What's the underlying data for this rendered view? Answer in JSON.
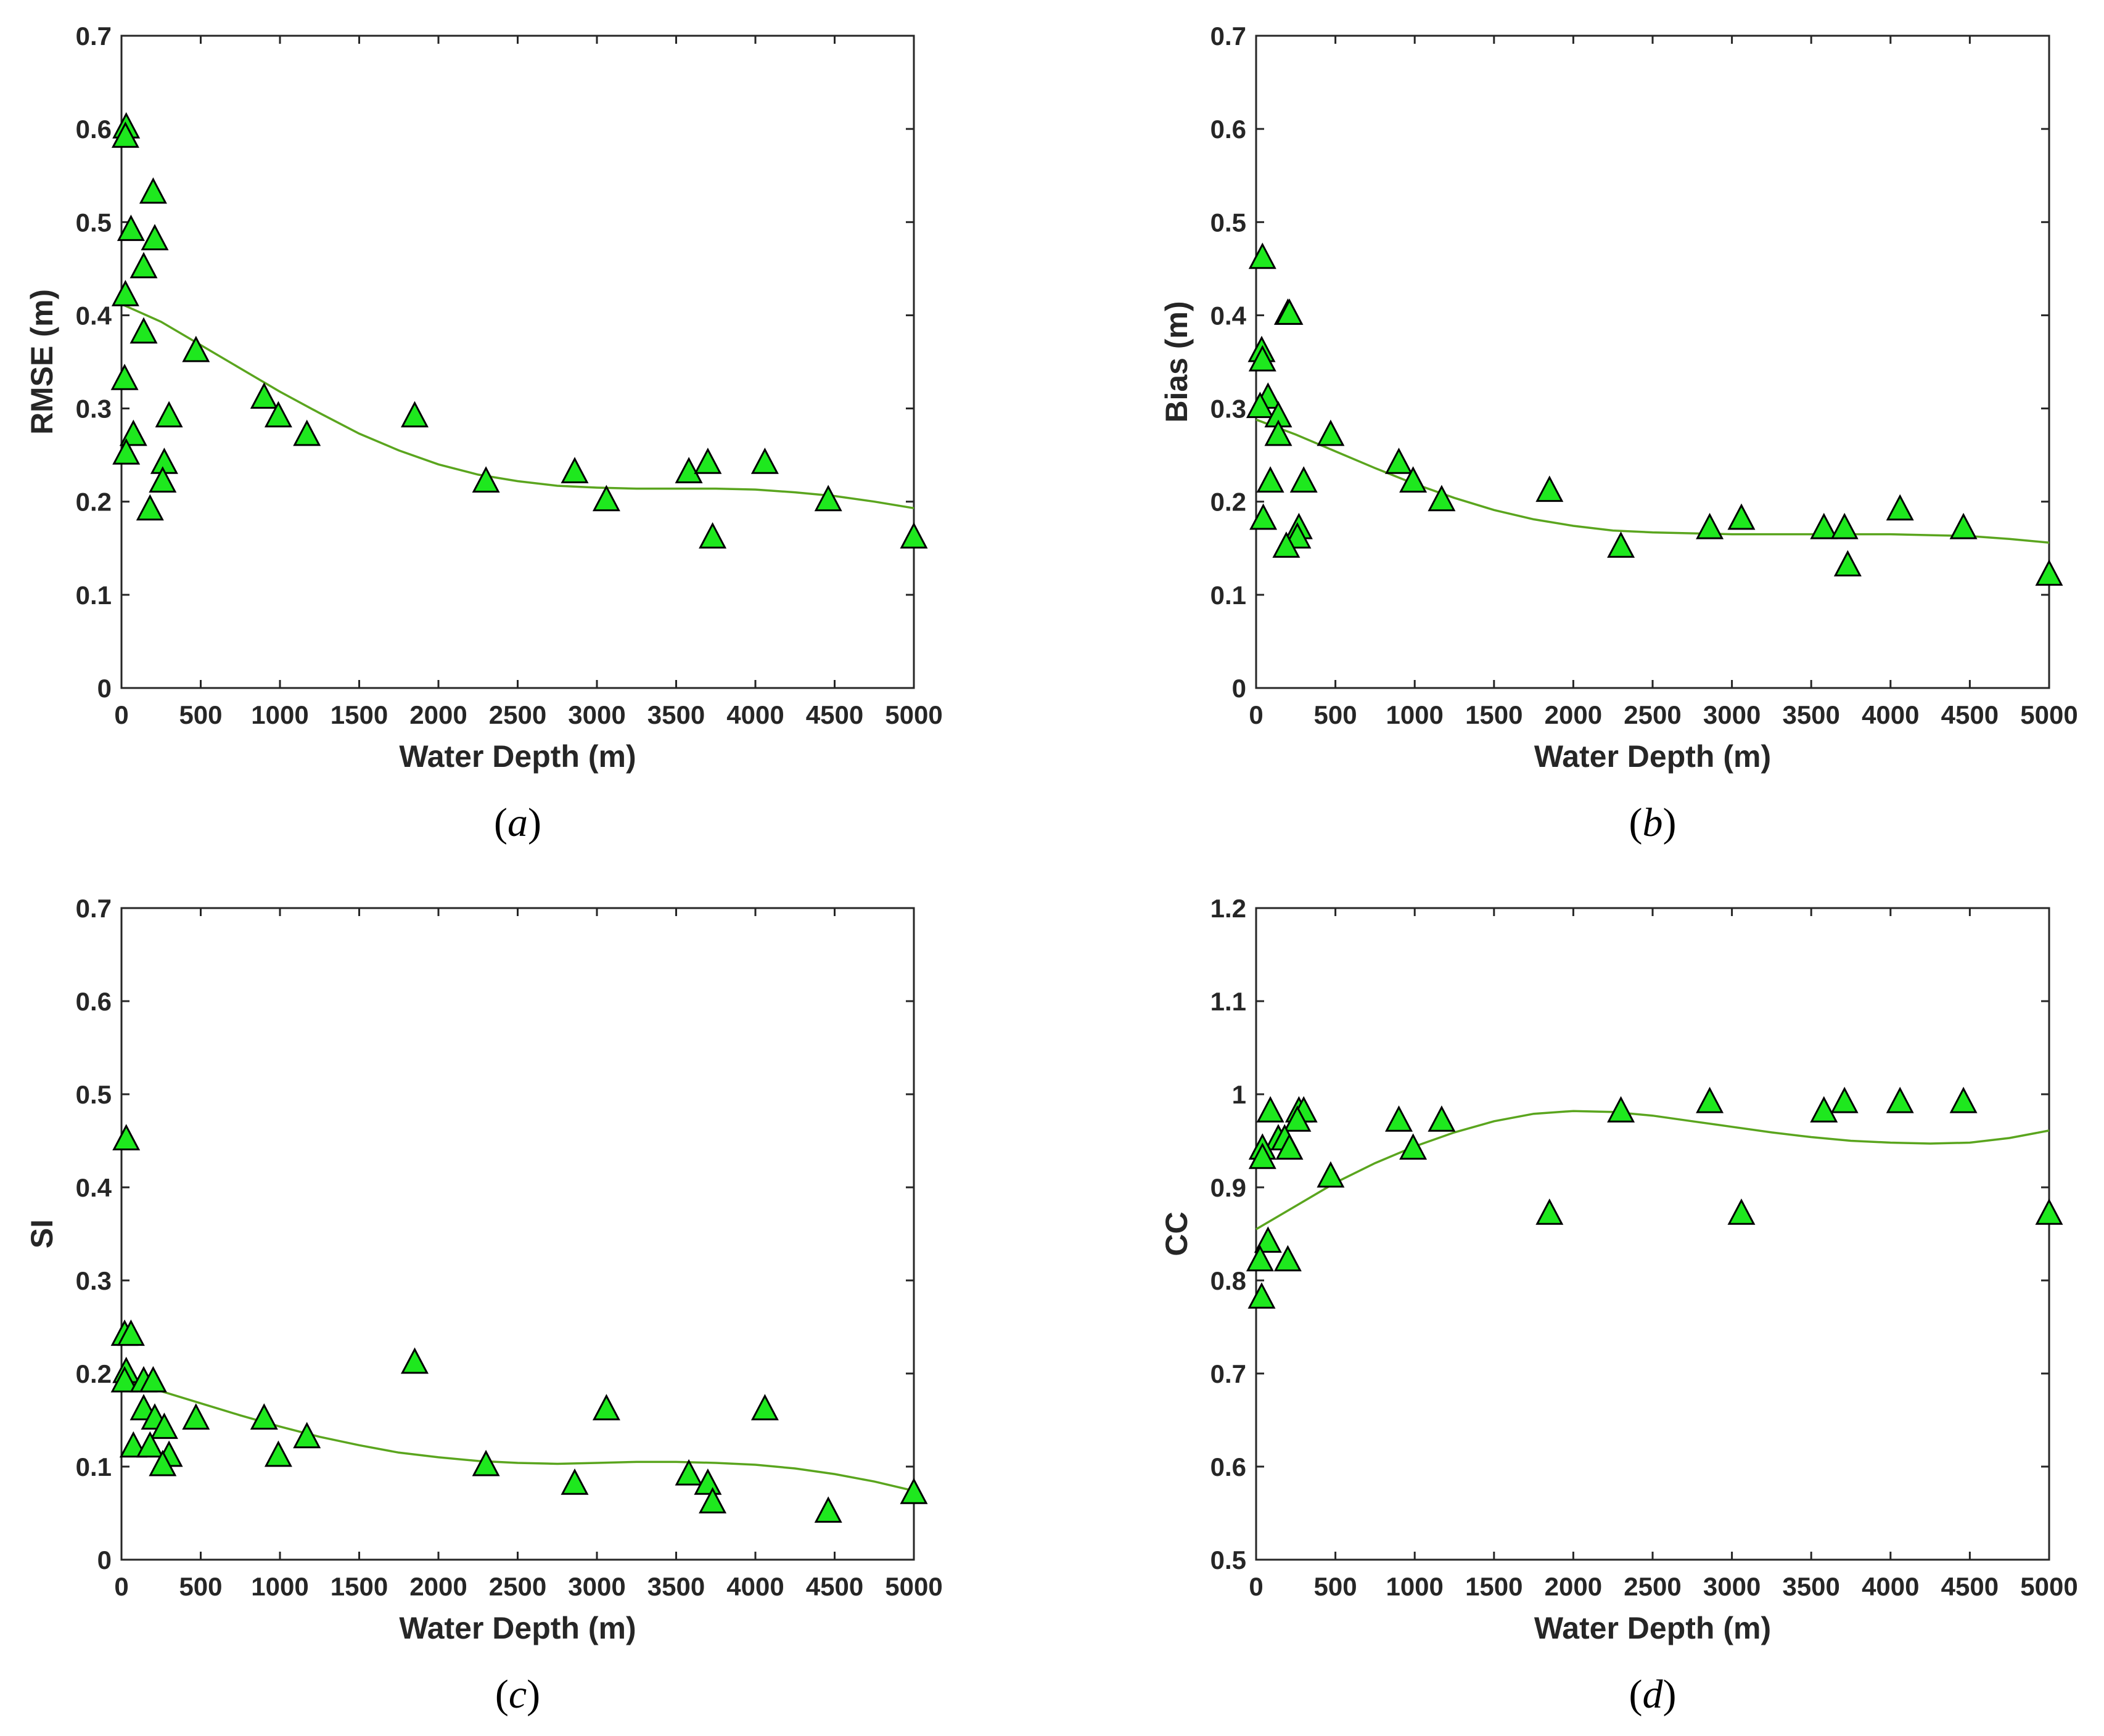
{
  "colors": {
    "marker_fill": "#1ee81e",
    "marker_stroke": "#000000",
    "fit_line": "#5aa51e",
    "axis": "#262626"
  },
  "chart_data": [
    {
      "id": "a",
      "type": "scatter",
      "caption": "a",
      "xlabel": "Water Depth (m)",
      "ylabel": "RMSE (m)",
      "xlim": [
        0,
        5000
      ],
      "ylim": [
        0,
        0.7
      ],
      "xticks": [
        0,
        500,
        1000,
        1500,
        2000,
        2500,
        3000,
        3500,
        4000,
        4500,
        5000
      ],
      "yticks": [
        0,
        0.1,
        0.2,
        0.3,
        0.4,
        0.5,
        0.6,
        0.7
      ],
      "points": [
        [
          30,
          0.6
        ],
        [
          25,
          0.59
        ],
        [
          60,
          0.49
        ],
        [
          200,
          0.53
        ],
        [
          210,
          0.48
        ],
        [
          140,
          0.45
        ],
        [
          25,
          0.42
        ],
        [
          140,
          0.38
        ],
        [
          470,
          0.36
        ],
        [
          20,
          0.33
        ],
        [
          300,
          0.29
        ],
        [
          75,
          0.27
        ],
        [
          30,
          0.25
        ],
        [
          270,
          0.24
        ],
        [
          260,
          0.22
        ],
        [
          180,
          0.19
        ],
        [
          900,
          0.31
        ],
        [
          990,
          0.29
        ],
        [
          1170,
          0.27
        ],
        [
          1850,
          0.29
        ],
        [
          2300,
          0.22
        ],
        [
          2860,
          0.23
        ],
        [
          3060,
          0.2
        ],
        [
          3580,
          0.23
        ],
        [
          3700,
          0.24
        ],
        [
          3730,
          0.16
        ],
        [
          4060,
          0.24
        ],
        [
          4460,
          0.2
        ],
        [
          5000,
          0.16
        ]
      ],
      "fit_line": [
        [
          0,
          0.412
        ],
        [
          250,
          0.393
        ],
        [
          500,
          0.368
        ],
        [
          750,
          0.343
        ],
        [
          1000,
          0.318
        ],
        [
          1250,
          0.295
        ],
        [
          1500,
          0.273
        ],
        [
          1750,
          0.255
        ],
        [
          2000,
          0.24
        ],
        [
          2250,
          0.229
        ],
        [
          2500,
          0.222
        ],
        [
          2750,
          0.217
        ],
        [
          3000,
          0.215
        ],
        [
          3250,
          0.214
        ],
        [
          3500,
          0.214
        ],
        [
          3750,
          0.214
        ],
        [
          4000,
          0.213
        ],
        [
          4250,
          0.21
        ],
        [
          4500,
          0.206
        ],
        [
          4750,
          0.2
        ],
        [
          5000,
          0.193
        ]
      ]
    },
    {
      "id": "b",
      "type": "scatter",
      "caption": "b",
      "xlabel": "Water Depth (m)",
      "ylabel": "Bias (m)",
      "xlim": [
        0,
        5000
      ],
      "ylim": [
        0,
        0.7
      ],
      "xticks": [
        0,
        500,
        1000,
        1500,
        2000,
        2500,
        3000,
        3500,
        4000,
        4500,
        5000
      ],
      "yticks": [
        0,
        0.1,
        0.2,
        0.3,
        0.4,
        0.5,
        0.6,
        0.7
      ],
      "points": [
        [
          40,
          0.46
        ],
        [
          200,
          0.4
        ],
        [
          210,
          0.4
        ],
        [
          35,
          0.36
        ],
        [
          40,
          0.35
        ],
        [
          75,
          0.31
        ],
        [
          25,
          0.3
        ],
        [
          140,
          0.29
        ],
        [
          140,
          0.27
        ],
        [
          470,
          0.27
        ],
        [
          90,
          0.22
        ],
        [
          300,
          0.22
        ],
        [
          45,
          0.18
        ],
        [
          270,
          0.17
        ],
        [
          260,
          0.16
        ],
        [
          190,
          0.15
        ],
        [
          900,
          0.24
        ],
        [
          990,
          0.22
        ],
        [
          1170,
          0.2
        ],
        [
          1850,
          0.21
        ],
        [
          2300,
          0.15
        ],
        [
          2860,
          0.17
        ],
        [
          3060,
          0.18
        ],
        [
          3580,
          0.17
        ],
        [
          3710,
          0.17
        ],
        [
          3730,
          0.13
        ],
        [
          4060,
          0.19
        ],
        [
          4460,
          0.17
        ],
        [
          5000,
          0.12
        ]
      ],
      "fit_line": [
        [
          0,
          0.288
        ],
        [
          250,
          0.272
        ],
        [
          500,
          0.254
        ],
        [
          750,
          0.236
        ],
        [
          1000,
          0.219
        ],
        [
          1250,
          0.204
        ],
        [
          1500,
          0.191
        ],
        [
          1750,
          0.181
        ],
        [
          2000,
          0.174
        ],
        [
          2250,
          0.169
        ],
        [
          2500,
          0.167
        ],
        [
          2750,
          0.166
        ],
        [
          3000,
          0.165
        ],
        [
          3250,
          0.165
        ],
        [
          3500,
          0.165
        ],
        [
          3750,
          0.165
        ],
        [
          4000,
          0.165
        ],
        [
          4250,
          0.164
        ],
        [
          4500,
          0.163
        ],
        [
          4750,
          0.16
        ],
        [
          5000,
          0.156
        ]
      ]
    },
    {
      "id": "c",
      "type": "scatter",
      "caption": "c",
      "xlabel": "Water Depth (m)",
      "ylabel": "SI",
      "xlim": [
        0,
        5000
      ],
      "ylim": [
        0,
        0.7
      ],
      "xticks": [
        0,
        500,
        1000,
        1500,
        2000,
        2500,
        3000,
        3500,
        4000,
        4500,
        5000
      ],
      "yticks": [
        0,
        0.1,
        0.2,
        0.3,
        0.4,
        0.5,
        0.6,
        0.7
      ],
      "points": [
        [
          30,
          0.45
        ],
        [
          20,
          0.24
        ],
        [
          60,
          0.24
        ],
        [
          30,
          0.2
        ],
        [
          20,
          0.19
        ],
        [
          140,
          0.19
        ],
        [
          200,
          0.19
        ],
        [
          140,
          0.16
        ],
        [
          210,
          0.15
        ],
        [
          470,
          0.15
        ],
        [
          270,
          0.14
        ],
        [
          75,
          0.12
        ],
        [
          180,
          0.12
        ],
        [
          300,
          0.11
        ],
        [
          260,
          0.1
        ],
        [
          900,
          0.15
        ],
        [
          990,
          0.11
        ],
        [
          1170,
          0.13
        ],
        [
          1850,
          0.21
        ],
        [
          2300,
          0.1
        ],
        [
          2860,
          0.08
        ],
        [
          3060,
          0.16
        ],
        [
          3580,
          0.09
        ],
        [
          3700,
          0.08
        ],
        [
          3730,
          0.06
        ],
        [
          4060,
          0.16
        ],
        [
          4460,
          0.05
        ],
        [
          5000,
          0.07
        ]
      ],
      "fit_line": [
        [
          0,
          0.193
        ],
        [
          250,
          0.181
        ],
        [
          500,
          0.168
        ],
        [
          750,
          0.155
        ],
        [
          1000,
          0.143
        ],
        [
          1250,
          0.132
        ],
        [
          1500,
          0.123
        ],
        [
          1750,
          0.115
        ],
        [
          2000,
          0.11
        ],
        [
          2250,
          0.106
        ],
        [
          2500,
          0.104
        ],
        [
          2750,
          0.103
        ],
        [
          3000,
          0.104
        ],
        [
          3250,
          0.105
        ],
        [
          3500,
          0.105
        ],
        [
          3750,
          0.104
        ],
        [
          4000,
          0.102
        ],
        [
          4250,
          0.098
        ],
        [
          4500,
          0.092
        ],
        [
          4750,
          0.084
        ],
        [
          5000,
          0.074
        ]
      ]
    },
    {
      "id": "d",
      "type": "scatter",
      "caption": "d",
      "xlabel": "Water Depth (m)",
      "ylabel": "CC",
      "xlim": [
        0,
        5000
      ],
      "ylim": [
        0.5,
        1.2
      ],
      "xticks": [
        0,
        500,
        1000,
        1500,
        2000,
        2500,
        3000,
        3500,
        4000,
        4500,
        5000
      ],
      "yticks": [
        0.5,
        0.6,
        0.7,
        0.8,
        0.9,
        1.0,
        1.1,
        1.2
      ],
      "points": [
        [
          90,
          0.98
        ],
        [
          270,
          0.98
        ],
        [
          300,
          0.98
        ],
        [
          260,
          0.97
        ],
        [
          140,
          0.95
        ],
        [
          180,
          0.95
        ],
        [
          210,
          0.94
        ],
        [
          40,
          0.94
        ],
        [
          40,
          0.93
        ],
        [
          470,
          0.91
        ],
        [
          75,
          0.84
        ],
        [
          25,
          0.82
        ],
        [
          200,
          0.82
        ],
        [
          35,
          0.78
        ],
        [
          900,
          0.97
        ],
        [
          990,
          0.94
        ],
        [
          1170,
          0.97
        ],
        [
          1850,
          0.87
        ],
        [
          2300,
          0.98
        ],
        [
          2860,
          0.99
        ],
        [
          3060,
          0.87
        ],
        [
          3580,
          0.98
        ],
        [
          3710,
          0.99
        ],
        [
          4060,
          0.99
        ],
        [
          4460,
          0.99
        ],
        [
          5000,
          0.87
        ]
      ],
      "fit_line": [
        [
          0,
          0.855
        ],
        [
          250,
          0.88
        ],
        [
          500,
          0.905
        ],
        [
          750,
          0.926
        ],
        [
          1000,
          0.944
        ],
        [
          1250,
          0.959
        ],
        [
          1500,
          0.971
        ],
        [
          1750,
          0.979
        ],
        [
          2000,
          0.982
        ],
        [
          2250,
          0.981
        ],
        [
          2500,
          0.977
        ],
        [
          2750,
          0.971
        ],
        [
          3000,
          0.965
        ],
        [
          3250,
          0.959
        ],
        [
          3500,
          0.954
        ],
        [
          3750,
          0.95
        ],
        [
          4000,
          0.948
        ],
        [
          4250,
          0.947
        ],
        [
          4500,
          0.948
        ],
        [
          4750,
          0.953
        ],
        [
          5000,
          0.961
        ]
      ]
    }
  ]
}
